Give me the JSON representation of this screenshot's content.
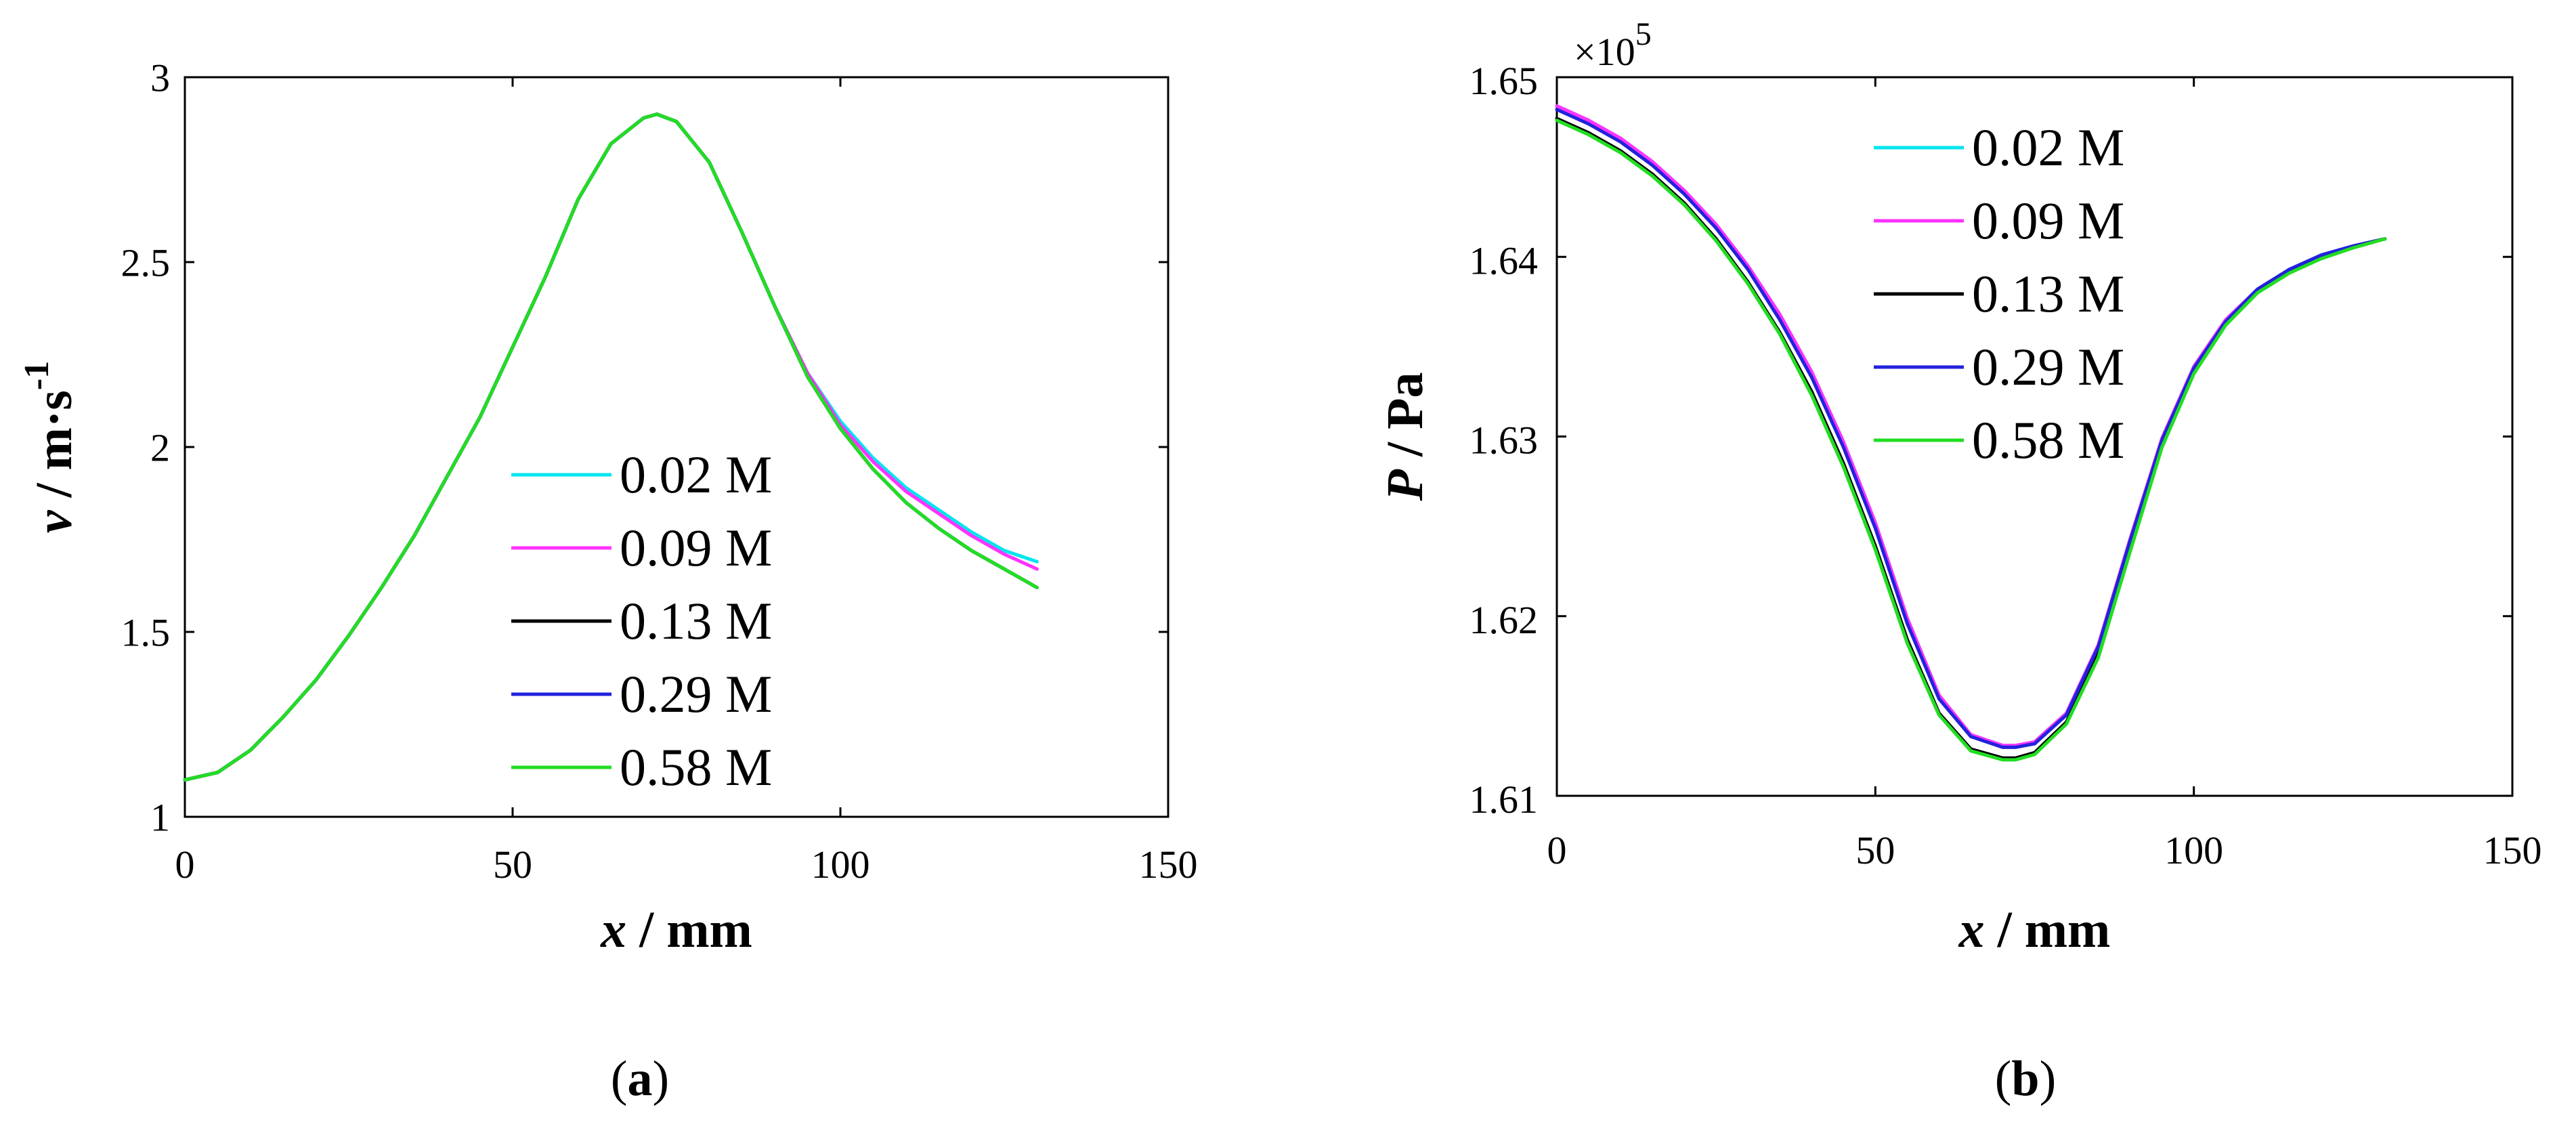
{
  "chart_data": [
    {
      "panel_label": "(a)",
      "type": "line",
      "title": "",
      "xlabel": "x / mm",
      "xlabel_var": "x",
      "xlabel_unit": " / mm",
      "ylabel": "v / m·s-1",
      "ylabel_var": "v",
      "ylabel_unit": " / m·s",
      "ylabel_sup": "-1",
      "xlim": [
        0,
        150
      ],
      "ylim": [
        1,
        3
      ],
      "xticks": [
        "0",
        "50",
        "100",
        "150"
      ],
      "yticks": [
        "1",
        "1.5",
        "2",
        "2.5",
        "3"
      ],
      "legend": {
        "position": "center-bottom"
      },
      "x": [
        0,
        5,
        10,
        15,
        20,
        25,
        30,
        35,
        40,
        45,
        50,
        55,
        60,
        65,
        70,
        72,
        75,
        80,
        85,
        90,
        95,
        100,
        105,
        110,
        115,
        120,
        125,
        130
      ],
      "series": [
        {
          "name": "0.02 M",
          "color": "#00e5ee",
          "values": [
            1.1,
            1.12,
            1.18,
            1.27,
            1.37,
            1.49,
            1.62,
            1.76,
            1.92,
            2.08,
            2.27,
            2.46,
            2.67,
            2.82,
            2.89,
            2.9,
            2.88,
            2.77,
            2.58,
            2.38,
            2.2,
            2.07,
            1.97,
            1.89,
            1.83,
            1.77,
            1.72,
            1.69
          ]
        },
        {
          "name": "0.09 M",
          "color": "#ff33ff",
          "values": [
            1.1,
            1.12,
            1.18,
            1.27,
            1.37,
            1.49,
            1.62,
            1.76,
            1.92,
            2.08,
            2.27,
            2.46,
            2.67,
            2.82,
            2.89,
            2.9,
            2.88,
            2.77,
            2.58,
            2.38,
            2.2,
            2.06,
            1.96,
            1.88,
            1.82,
            1.76,
            1.71,
            1.67
          ]
        },
        {
          "name": "0.13 M",
          "color": "#000000",
          "values": [
            1.1,
            1.12,
            1.18,
            1.27,
            1.37,
            1.49,
            1.62,
            1.76,
            1.92,
            2.08,
            2.27,
            2.46,
            2.67,
            2.82,
            2.89,
            2.9,
            2.88,
            2.77,
            2.58,
            2.38,
            2.19,
            2.05,
            1.94,
            1.85,
            1.78,
            1.72,
            1.67,
            1.62
          ]
        },
        {
          "name": "0.29 M",
          "color": "#2222dd",
          "values": [
            1.1,
            1.12,
            1.18,
            1.27,
            1.37,
            1.49,
            1.62,
            1.76,
            1.92,
            2.08,
            2.27,
            2.46,
            2.67,
            2.82,
            2.89,
            2.9,
            2.88,
            2.77,
            2.58,
            2.38,
            2.19,
            2.05,
            1.94,
            1.85,
            1.78,
            1.72,
            1.67,
            1.62
          ]
        },
        {
          "name": "0.58 M",
          "color": "#22dd22",
          "values": [
            1.1,
            1.12,
            1.18,
            1.27,
            1.37,
            1.49,
            1.62,
            1.76,
            1.92,
            2.08,
            2.27,
            2.46,
            2.67,
            2.82,
            2.89,
            2.9,
            2.88,
            2.77,
            2.58,
            2.38,
            2.19,
            2.05,
            1.94,
            1.85,
            1.78,
            1.72,
            1.67,
            1.62
          ]
        }
      ]
    },
    {
      "panel_label": "(b)",
      "type": "line",
      "title": "",
      "xlabel": "x / mm",
      "xlabel_var": "x",
      "xlabel_unit": " / mm",
      "ylabel": "P / Pa",
      "ylabel_var": "P",
      "ylabel_unit": " / Pa",
      "ylabel_sup": "",
      "exponent_prefix": "×10",
      "exponent_sup": "5",
      "xlim": [
        0,
        150
      ],
      "ylim": [
        1.61,
        1.65
      ],
      "xticks": [
        "0",
        "50",
        "100",
        "150"
      ],
      "yticks": [
        "1.61",
        "1.62",
        "1.63",
        "1.64",
        "1.65"
      ],
      "legend": {
        "position": "top-center"
      },
      "x": [
        0,
        5,
        10,
        15,
        20,
        25,
        30,
        35,
        40,
        45,
        50,
        55,
        60,
        65,
        70,
        72,
        75,
        80,
        85,
        90,
        95,
        100,
        105,
        110,
        115,
        120,
        125,
        130
      ],
      "series": [
        {
          "name": "0.02 M",
          "color": "#00e5ee",
          "values": [
            1.6484,
            1.6476,
            1.6466,
            1.6453,
            1.6437,
            1.6418,
            1.6395,
            1.6368,
            1.6336,
            1.6297,
            1.6252,
            1.6199,
            1.6156,
            1.6134,
            1.6128,
            1.6128,
            1.613,
            1.6146,
            1.6184,
            1.6243,
            1.6299,
            1.6339,
            1.6365,
            1.6382,
            1.6393,
            1.6401,
            1.6406,
            1.641
          ]
        },
        {
          "name": "0.09 M",
          "color": "#ff33ff",
          "values": [
            1.6484,
            1.6476,
            1.6466,
            1.6453,
            1.6437,
            1.6418,
            1.6395,
            1.6368,
            1.6336,
            1.6297,
            1.6252,
            1.6199,
            1.6156,
            1.6134,
            1.6128,
            1.6128,
            1.613,
            1.6146,
            1.6184,
            1.6243,
            1.6299,
            1.6339,
            1.6365,
            1.6382,
            1.6393,
            1.6401,
            1.6406,
            1.641
          ]
        },
        {
          "name": "0.13 M",
          "color": "#000000",
          "values": [
            1.6477,
            1.6469,
            1.6459,
            1.6446,
            1.643,
            1.641,
            1.6386,
            1.6358,
            1.6325,
            1.6285,
            1.6239,
            1.6187,
            1.6146,
            1.6126,
            1.6121,
            1.6121,
            1.6124,
            1.6141,
            1.6179,
            1.6238,
            1.6295,
            1.6336,
            1.6363,
            1.6381,
            1.6392,
            1.64,
            1.6406,
            1.641
          ]
        },
        {
          "name": "0.29 M",
          "color": "#2222dd",
          "values": [
            1.6482,
            1.6474,
            1.6464,
            1.6451,
            1.6435,
            1.6416,
            1.6393,
            1.6365,
            1.6333,
            1.6294,
            1.6249,
            1.6196,
            1.6154,
            1.6133,
            1.6127,
            1.6127,
            1.6129,
            1.6145,
            1.6183,
            1.6242,
            1.6298,
            1.6338,
            1.6364,
            1.6382,
            1.6393,
            1.6401,
            1.6406,
            1.641
          ]
        },
        {
          "name": "0.58 M",
          "color": "#22dd22",
          "values": [
            1.6476,
            1.6468,
            1.6458,
            1.6445,
            1.6429,
            1.6409,
            1.6385,
            1.6357,
            1.6323,
            1.6283,
            1.6237,
            1.6185,
            1.6145,
            1.6125,
            1.612,
            1.612,
            1.6123,
            1.614,
            1.6177,
            1.6236,
            1.6294,
            1.6335,
            1.6362,
            1.638,
            1.6391,
            1.6399,
            1.6405,
            1.641
          ]
        }
      ]
    }
  ]
}
